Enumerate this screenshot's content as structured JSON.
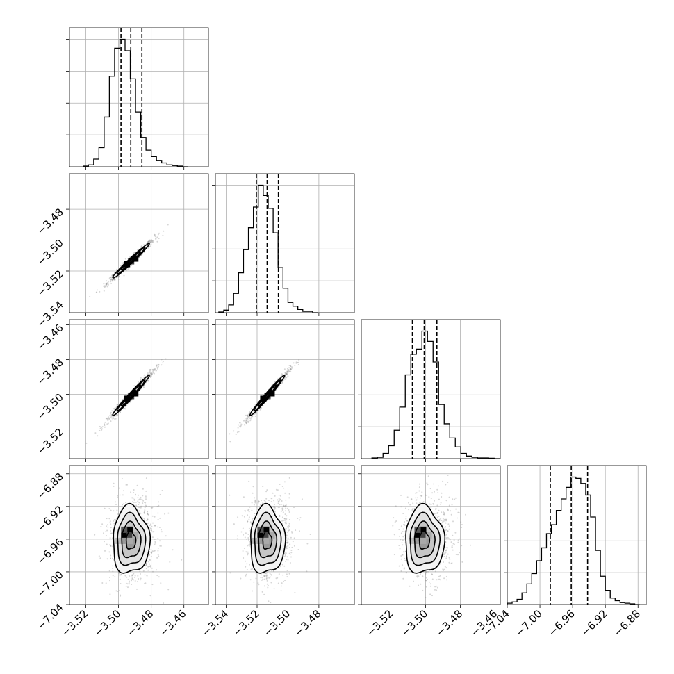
{
  "chart_data": {
    "type": "corner",
    "grid": true,
    "axes": [
      {
        "index": 0,
        "range": [
          -3.53,
          -3.445
        ],
        "ticks": [
          -3.52,
          -3.5,
          -3.48,
          -3.46
        ],
        "tick_labels": [
          "−3.52",
          "−3.50",
          "−3.48",
          "−3.46"
        ]
      },
      {
        "index": 1,
        "range": [
          -3.547,
          -3.457
        ],
        "ticks": [
          -3.54,
          -3.52,
          -3.5,
          -3.48
        ],
        "tick_labels": [
          "−3.54",
          "−3.52",
          "−3.50",
          "−3.48"
        ]
      },
      {
        "index": 2,
        "range": [
          -3.537,
          -3.457
        ],
        "ticks": [
          -3.52,
          -3.5,
          -3.48,
          -3.46
        ],
        "tick_labels": [
          "−3.52",
          "−3.50",
          "−3.48",
          "−3.46"
        ]
      },
      {
        "index": 3,
        "range": [
          -7.04,
          -6.87
        ],
        "ticks": [
          -7.04,
          -7.0,
          -6.96,
          -6.92,
          -6.88
        ],
        "tick_labels": [
          "−7.04",
          "−7.00",
          "−6.96",
          "−6.92",
          "−6.88"
        ]
      }
    ],
    "y_tick_labels": {
      "1": [
        "−3.54",
        "−3.52",
        "−3.50",
        "−3.48"
      ],
      "2": [
        "−3.52",
        "−3.50",
        "−3.48",
        "−3.46"
      ],
      "3": [
        "−7.04",
        "−7.00",
        "−6.96",
        "−6.92",
        "−6.88"
      ]
    },
    "histograms": [
      {
        "param": 0,
        "quantiles": [
          -3.4985,
          -3.4925,
          -3.4857
        ],
        "bin_edges": [
          -3.5216,
          -3.5184,
          -3.5152,
          -3.512,
          -3.5088,
          -3.5056,
          -3.5024,
          -3.4992,
          -3.496,
          -3.4928,
          -3.4896,
          -3.4864,
          -3.4832,
          -3.48,
          -3.4768,
          -3.4736,
          -3.4704,
          -3.4672,
          -3.464,
          -3.4608,
          -3.4576
        ],
        "counts": [
          0.5,
          1.5,
          6,
          15,
          39,
          71,
          93,
          100,
          91,
          69,
          43,
          23,
          13,
          8,
          5,
          3,
          1.5,
          1,
          0.5,
          0
        ]
      },
      {
        "param": 1,
        "quantiles": [
          -3.5205,
          -3.5135,
          -3.5062
        ],
        "bin_edges": [
          -3.5448,
          -3.5416,
          -3.5384,
          -3.5352,
          -3.532,
          -3.5288,
          -3.5256,
          -3.5224,
          -3.5192,
          -3.516,
          -3.5128,
          -3.5096,
          -3.5064,
          -3.5032,
          -3.5,
          -3.4968,
          -3.4936,
          -3.4904,
          -3.4872,
          -3.484,
          -3.4808
        ],
        "counts": [
          0.5,
          2,
          6,
          15,
          31,
          49,
          66,
          82,
          99,
          91,
          81,
          62,
          35,
          19,
          8,
          5,
          2.5,
          1,
          1,
          0
        ]
      },
      {
        "param": 2,
        "quantiles": [
          -3.5076,
          -3.5008,
          -3.4935
        ],
        "bin_edges": [
          -3.5309,
          -3.5277,
          -3.5245,
          -3.5213,
          -3.5181,
          -3.5149,
          -3.5117,
          -3.5085,
          -3.5053,
          -3.5021,
          -3.4989,
          -3.4957,
          -3.4925,
          -3.4893,
          -3.4861,
          -3.4829,
          -3.4797,
          -3.4765,
          -3.4733,
          -3.4701,
          -3.4669,
          -3.4637,
          -3.4605,
          -3.4573
        ],
        "counts": [
          0.5,
          1,
          4,
          10,
          22,
          40,
          65,
          81,
          85,
          99,
          91,
          75,
          42,
          27,
          16,
          9,
          4,
          2,
          1,
          0.5,
          0.5,
          0.3,
          0
        ]
      },
      {
        "param": 3,
        "quantiles": [
          -6.9873,
          -6.9617,
          -6.9417
        ],
        "bin_edges": [
          -7.04,
          -7.034,
          -7.028,
          -7.022,
          -7.016,
          -7.01,
          -7.004,
          -6.998,
          -6.992,
          -6.986,
          -6.98,
          -6.974,
          -6.968,
          -6.962,
          -6.956,
          -6.95,
          -6.944,
          -6.938,
          -6.932,
          -6.926,
          -6.92,
          -6.914,
          -6.908,
          -6.902,
          -6.896,
          -6.89,
          -6.884,
          -6.878
        ],
        "counts": [
          1,
          2,
          4,
          9,
          16,
          24,
          34,
          44,
          55,
          62,
          73,
          82,
          91,
          99,
          98,
          94,
          85,
          68,
          42,
          22,
          11,
          5,
          3,
          1.5,
          1,
          0.5,
          0
        ]
      }
    ],
    "pairs": [
      {
        "x_param": 0,
        "y_param": 1,
        "center": [
          -3.4925,
          -3.5135
        ],
        "cov": [
          [
            2.85e-05,
            2.8e-05
          ],
          [
            2.8e-05,
            2.85e-05
          ]
        ]
      },
      {
        "x_param": 0,
        "y_param": 2,
        "center": [
          -3.4925,
          -3.5008
        ],
        "cov": [
          [
            2.85e-05,
            2.9e-05
          ],
          [
            2.9e-05,
            3.05e-05
          ]
        ]
      },
      {
        "x_param": 1,
        "y_param": 2,
        "center": [
          -3.5135,
          -3.5008
        ],
        "cov": [
          [
            2.85e-05,
            2.9e-05
          ],
          [
            2.9e-05,
            3.05e-05
          ]
        ]
      },
      {
        "x_param": 0,
        "y_param": 3,
        "center": [
          -3.4925,
          -6.9617
        ],
        "cov": [
          [
            2.85e-05,
            0.0
          ],
          [
            0.0,
            0.00038
          ]
        ]
      },
      {
        "x_param": 1,
        "y_param": 3,
        "center": [
          -3.5135,
          -6.9617
        ],
        "cov": [
          [
            2.85e-05,
            0.0
          ],
          [
            0.0,
            0.00038
          ]
        ]
      },
      {
        "x_param": 2,
        "y_param": 3,
        "center": [
          -3.5008,
          -6.9617
        ],
        "cov": [
          [
            2.85e-05,
            0.0
          ],
          [
            0.0,
            0.00038
          ]
        ]
      }
    ]
  }
}
